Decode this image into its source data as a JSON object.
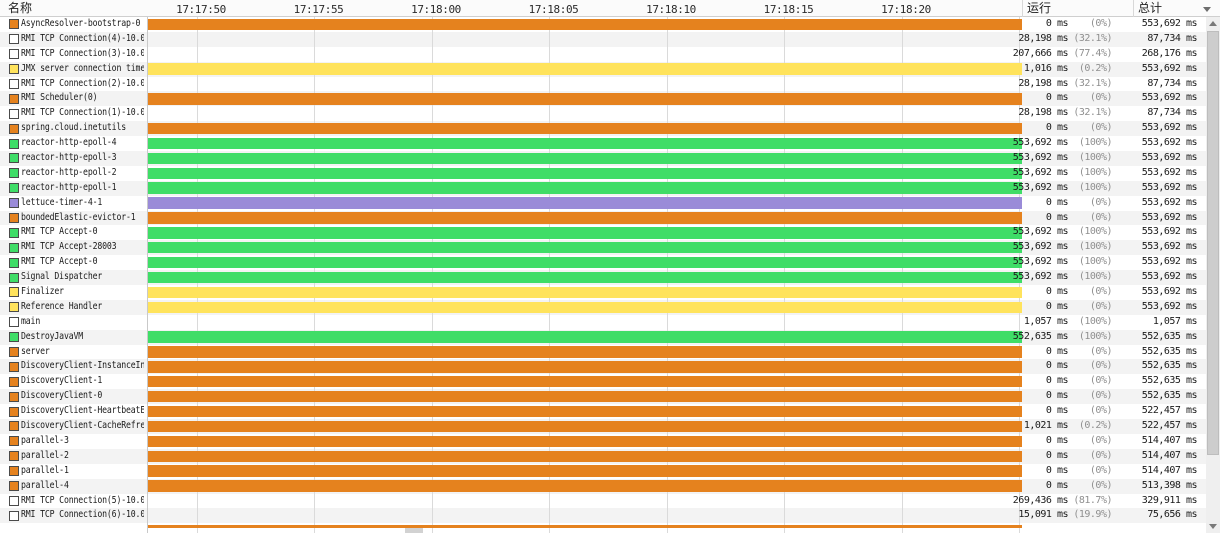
{
  "header": {
    "name_col": "名称",
    "run_col": "运行",
    "total_col": "总计"
  },
  "timeline": {
    "tick_labels": [
      "17:17:50",
      "17:17:55",
      "17:18:00",
      "17:18:05",
      "17:18:10",
      "17:18:15",
      "17:18:20"
    ]
  },
  "colors": {
    "orange": "#e5821e",
    "yellow": "#ffe35c",
    "green": "#3fdd67",
    "purple": "#9a8bd8",
    "white": "#ffffff"
  },
  "rows": [
    {
      "name": "AsyncResolver-bootstrap-0",
      "icon": "orange",
      "bar": "orange",
      "run": "0 ms",
      "pct": "(0%)",
      "total": "553,692 ms"
    },
    {
      "name": "RMI TCP Connection(4)-10.0.",
      "icon": "white",
      "bar": null,
      "run": "28,198 ms",
      "pct": "(32.1%)",
      "total": "87,734 ms"
    },
    {
      "name": "RMI TCP Connection(3)-10.0.",
      "icon": "white",
      "bar": null,
      "run": "207,666 ms",
      "pct": "(77.4%)",
      "total": "268,176 ms"
    },
    {
      "name": "JMX server connection time",
      "icon": "yellow",
      "bar": "yellow",
      "run": "1,016 ms",
      "pct": "(0.2%)",
      "total": "553,692 ms"
    },
    {
      "name": "RMI TCP Connection(2)-10.0.",
      "icon": "white",
      "bar": null,
      "run": "28,198 ms",
      "pct": "(32.1%)",
      "total": "87,734 ms"
    },
    {
      "name": "RMI Scheduler(0)",
      "icon": "orange",
      "bar": "orange",
      "run": "0 ms",
      "pct": "(0%)",
      "total": "553,692 ms"
    },
    {
      "name": "RMI TCP Connection(1)-10.0.",
      "icon": "white",
      "bar": null,
      "run": "28,198 ms",
      "pct": "(32.1%)",
      "total": "87,734 ms"
    },
    {
      "name": "spring.cloud.inetutils",
      "icon": "orange",
      "bar": "orange",
      "run": "0 ms",
      "pct": "(0%)",
      "total": "553,692 ms"
    },
    {
      "name": "reactor-http-epoll-4",
      "icon": "green",
      "bar": "green",
      "run": "553,692 ms",
      "pct": "(100%)",
      "total": "553,692 ms"
    },
    {
      "name": "reactor-http-epoll-3",
      "icon": "green",
      "bar": "green",
      "run": "553,692 ms",
      "pct": "(100%)",
      "total": "553,692 ms"
    },
    {
      "name": "reactor-http-epoll-2",
      "icon": "green",
      "bar": "green",
      "run": "553,692 ms",
      "pct": "(100%)",
      "total": "553,692 ms"
    },
    {
      "name": "reactor-http-epoll-1",
      "icon": "green",
      "bar": "green",
      "run": "553,692 ms",
      "pct": "(100%)",
      "total": "553,692 ms"
    },
    {
      "name": "lettuce-timer-4-1",
      "icon": "purple",
      "bar": "purple",
      "run": "0 ms",
      "pct": "(0%)",
      "total": "553,692 ms"
    },
    {
      "name": "boundedElastic-evictor-1",
      "icon": "orange",
      "bar": "orange",
      "run": "0 ms",
      "pct": "(0%)",
      "total": "553,692 ms"
    },
    {
      "name": "RMI TCP Accept-0",
      "icon": "green",
      "bar": "green",
      "run": "553,692 ms",
      "pct": "(100%)",
      "total": "553,692 ms"
    },
    {
      "name": "RMI TCP Accept-28003",
      "icon": "green",
      "bar": "green",
      "run": "553,692 ms",
      "pct": "(100%)",
      "total": "553,692 ms"
    },
    {
      "name": "RMI TCP Accept-0",
      "icon": "green",
      "bar": "green",
      "run": "553,692 ms",
      "pct": "(100%)",
      "total": "553,692 ms"
    },
    {
      "name": "Signal Dispatcher",
      "icon": "green",
      "bar": "green",
      "run": "553,692 ms",
      "pct": "(100%)",
      "total": "553,692 ms"
    },
    {
      "name": "Finalizer",
      "icon": "yellow",
      "bar": "yellow",
      "run": "0 ms",
      "pct": "(0%)",
      "total": "553,692 ms"
    },
    {
      "name": "Reference Handler",
      "icon": "yellow",
      "bar": "yellow",
      "run": "0 ms",
      "pct": "(0%)",
      "total": "553,692 ms"
    },
    {
      "name": "main",
      "icon": "white",
      "bar": null,
      "run": "1,057 ms",
      "pct": "(100%)",
      "total": "1,057 ms"
    },
    {
      "name": "DestroyJavaVM",
      "icon": "green",
      "bar": "green",
      "run": "552,635 ms",
      "pct": "(100%)",
      "total": "552,635 ms"
    },
    {
      "name": "server",
      "icon": "orange",
      "bar": "orange",
      "run": "0 ms",
      "pct": "(0%)",
      "total": "552,635 ms"
    },
    {
      "name": "DiscoveryClient-InstanceIn",
      "icon": "orange",
      "bar": "orange",
      "run": "0 ms",
      "pct": "(0%)",
      "total": "552,635 ms"
    },
    {
      "name": "DiscoveryClient-1",
      "icon": "orange",
      "bar": "orange",
      "run": "0 ms",
      "pct": "(0%)",
      "total": "552,635 ms"
    },
    {
      "name": "DiscoveryClient-0",
      "icon": "orange",
      "bar": "orange",
      "run": "0 ms",
      "pct": "(0%)",
      "total": "552,635 ms"
    },
    {
      "name": "DiscoveryClient-HeartbeatE",
      "icon": "orange",
      "bar": "orange",
      "run": "0 ms",
      "pct": "(0%)",
      "total": "522,457 ms"
    },
    {
      "name": "DiscoveryClient-CacheRefre",
      "icon": "orange",
      "bar": "orange",
      "run": "1,021 ms",
      "pct": "(0.2%)",
      "total": "522,457 ms"
    },
    {
      "name": "parallel-3",
      "icon": "orange",
      "bar": "orange",
      "run": "0 ms",
      "pct": "(0%)",
      "total": "514,407 ms"
    },
    {
      "name": "parallel-2",
      "icon": "orange",
      "bar": "orange",
      "run": "0 ms",
      "pct": "(0%)",
      "total": "514,407 ms"
    },
    {
      "name": "parallel-1",
      "icon": "orange",
      "bar": "orange",
      "run": "0 ms",
      "pct": "(0%)",
      "total": "514,407 ms"
    },
    {
      "name": "parallel-4",
      "icon": "orange",
      "bar": "orange",
      "run": "0 ms",
      "pct": "(0%)",
      "total": "513,398 ms"
    },
    {
      "name": "RMI TCP Connection(5)-10.0.",
      "icon": "white",
      "bar": null,
      "run": "269,436 ms",
      "pct": "(81.7%)",
      "total": "329,911 ms"
    },
    {
      "name": "RMI TCP Connection(6)-10.0.",
      "icon": "white",
      "bar": null,
      "run": "15,091 ms",
      "pct": "(19.9%)",
      "total": "75,656 ms"
    }
  ],
  "partial_row": {
    "bar": "orange"
  }
}
